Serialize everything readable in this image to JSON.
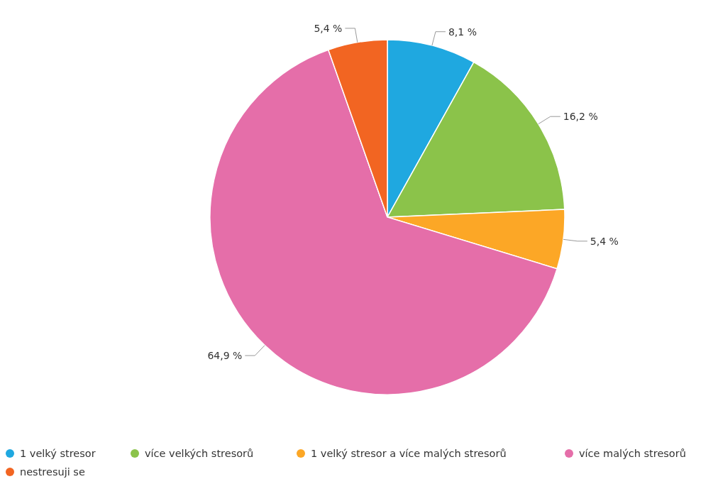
{
  "chart_data": {
    "type": "pie",
    "categories": [
      "1 velký stresor",
      "více velkých stresorů",
      "1 velký stresor a více malých stresorů",
      "více malých stresorů",
      "nestresuji se"
    ],
    "values": [
      8.1,
      16.2,
      5.4,
      64.9,
      5.4
    ],
    "colors": [
      "#1fa8e0",
      "#8bc34a",
      "#fca726",
      "#e56ea9",
      "#f26522"
    ],
    "value_labels": [
      "8,1 %",
      "16,2 %",
      "5,4 %",
      "64,9 %",
      "5,4 %"
    ],
    "legend": "bottom"
  }
}
